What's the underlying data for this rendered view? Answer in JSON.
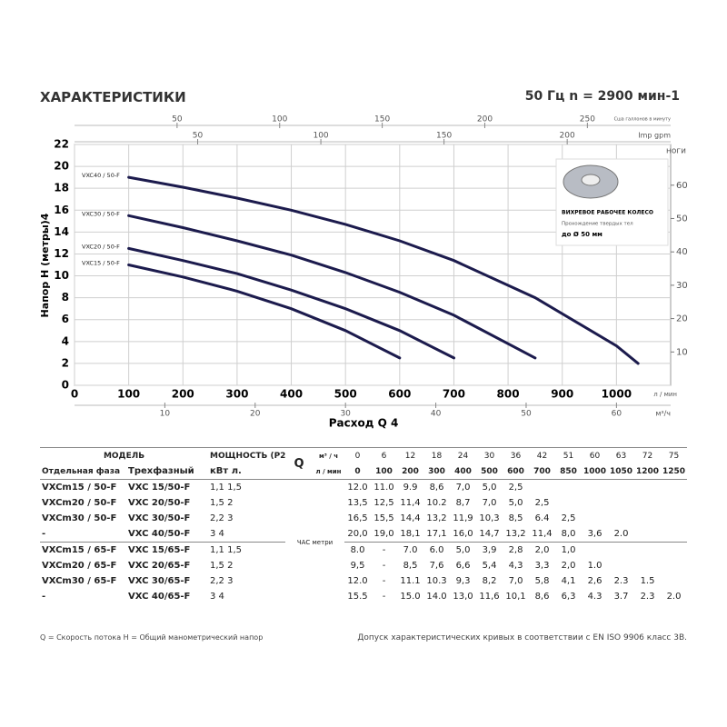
{
  "header": {
    "title": "ХАРАКТЕРИСТИКИ",
    "speed": "50 Гц n = 2900 мин-1"
  },
  "chart_data": {
    "type": "line",
    "y_label": "Напор H (метры)4",
    "x_label": "Расход Q 4",
    "x_unit": "л / мин",
    "y2_label": "ноги",
    "xlim": [
      0,
      1100
    ],
    "xticks": [
      0,
      100,
      200,
      300,
      400,
      500,
      600,
      700,
      800,
      900,
      1000
    ],
    "ylim": [
      0,
      22
    ],
    "yticks": [
      0,
      2,
      4,
      6,
      8,
      10,
      12,
      14,
      16,
      18,
      20,
      22
    ],
    "y2lim": [
      0,
      72.2
    ],
    "y2ticks": [
      10,
      20,
      30,
      40,
      50,
      60
    ],
    "grid": true,
    "x_axes": [
      {
        "label": "Сша галлонов в минуту",
        "lim": [
          0,
          290.6
        ],
        "ticks": [
          50,
          100,
          150,
          200,
          250
        ]
      },
      {
        "label": "Imp gpm",
        "lim": [
          0,
          242
        ],
        "ticks": [
          50,
          100,
          150,
          200
        ]
      },
      {
        "label": "м³/ч",
        "lim": [
          0,
          66
        ],
        "ticks": [
          10,
          20,
          30,
          40,
          50,
          60
        ]
      }
    ],
    "series": [
      {
        "name": "VXC40 / 50-F",
        "color": "#1c1b4d",
        "x": [
          100,
          200,
          300,
          400,
          500,
          600,
          700,
          850,
          1000,
          1040
        ],
        "values": [
          19.0,
          18.1,
          17.1,
          16.0,
          14.7,
          13.2,
          11.4,
          8.0,
          3.6,
          2.0
        ]
      },
      {
        "name": "VXC30 / 50-F",
        "color": "#1c1b4d",
        "x": [
          100,
          200,
          300,
          400,
          500,
          600,
          700,
          850
        ],
        "values": [
          15.5,
          14.4,
          13.2,
          11.9,
          10.3,
          8.5,
          6.4,
          2.5
        ]
      },
      {
        "name": "VXC20 / 50-F",
        "color": "#1c1b4d",
        "x": [
          100,
          200,
          300,
          400,
          500,
          600,
          700
        ],
        "values": [
          12.5,
          11.4,
          10.2,
          8.7,
          7.0,
          5.0,
          2.5
        ]
      },
      {
        "name": "VXC15 / 50-F",
        "color": "#1c1b4d",
        "x": [
          100,
          200,
          300,
          400,
          500,
          600
        ],
        "values": [
          11.0,
          9.9,
          8.6,
          7.0,
          5.0,
          2.5
        ]
      }
    ]
  },
  "inset": {
    "title": "ВИХРЕВОЕ РАБОЧЕЕ КОЛЕСО",
    "note": "Прохождение твердых тел",
    "size": "до Ø 50 мм"
  },
  "table": {
    "header": {
      "model": "МОДЕЛЬ",
      "power": "МОЩНОСТЬ (P2)",
      "q": "Q",
      "unit_m3h": "м³ / ч",
      "unit_lmin": "л / мин",
      "single_phase": "Отдельная фаза",
      "three_phase": "Трехфазный",
      "power_units": "кВт л.",
      "q_m3h": [
        0,
        6,
        12,
        18,
        24,
        30,
        36,
        42,
        51,
        60,
        63,
        72,
        75
      ],
      "q_lmin": [
        0,
        100,
        200,
        300,
        400,
        500,
        600,
        700,
        850,
        1000,
        1050,
        1200,
        1250
      ]
    },
    "head_label": "ЧАС метри",
    "rows": [
      {
        "single": "VXCm15 / 50-F",
        "three": "VXC 15/50-F",
        "power": "1,1 1,5",
        "heads": [
          "12.0",
          "11.0",
          "9.9",
          "8,6",
          "7,0",
          "5,0",
          "2,5",
          null,
          null,
          null,
          null,
          null,
          null
        ]
      },
      {
        "single": "VXCm20 / 50-F",
        "three": "VXC 20/50-F",
        "power": "1,5 2",
        "heads": [
          "13,5",
          "12,5",
          "11,4",
          "10.2",
          "8,7",
          "7,0",
          "5,0",
          "2,5",
          null,
          null,
          null,
          null,
          null
        ]
      },
      {
        "single": "VXCm30 / 50-F",
        "three": "VXC 30/50-F",
        "power": "2,2 3",
        "heads": [
          "16,5",
          "15,5",
          "14,4",
          "13,2",
          "11,9",
          "10,3",
          "8,5",
          "6.4",
          "2,5",
          null,
          null,
          null,
          null
        ]
      },
      {
        "single": "-",
        "three": "VXC 40/50-F",
        "power": "3 4",
        "heads": [
          "20,0",
          "19,0",
          "18,1",
          "17,1",
          "16,0",
          "14,7",
          "13,2",
          "11,4",
          "8,0",
          "3,6",
          "2.0",
          null,
          null
        ]
      },
      {
        "single": "VXCm15 / 65-F",
        "three": "VXC 15/65-F",
        "power": "1,1 1,5",
        "heads": [
          "8.0",
          "-",
          "7.0",
          "6.0",
          "5,0",
          "3,9",
          "2,8",
          "2,0",
          "1,0",
          null,
          null,
          null,
          null
        ]
      },
      {
        "single": "VXCm20 / 65-F",
        "three": "VXC 20/65-F",
        "power": "1,5 2",
        "heads": [
          "9,5",
          "-",
          "8,5",
          "7,6",
          "6,6",
          "5,4",
          "4,3",
          "3,3",
          "2,0",
          "1.0",
          null,
          null,
          null
        ]
      },
      {
        "single": "VXCm30 / 65-F",
        "three": "VXC 30/65-F",
        "power": "2,2 3",
        "heads": [
          "12.0",
          "-",
          "11.1",
          "10.3",
          "9,3",
          "8,2",
          "7,0",
          "5,8",
          "4,1",
          "2,6",
          "2.3",
          "1.5",
          null
        ]
      },
      {
        "single": "-",
        "three": "VXC 40/65-F",
        "power": "3 4",
        "heads": [
          "15.5",
          "-",
          "15.0",
          "14.0",
          "13,0",
          "11,6",
          "10,1",
          "8,6",
          "6,3",
          "4.3",
          "3.7",
          "2.3",
          "2.0"
        ]
      }
    ]
  },
  "footer": {
    "legend": "Q = Скорость потока H = Общий манометрический напор",
    "tolerance": "Допуск характеристических кривых в соответствии с EN ISO 9906 класс 3B."
  }
}
